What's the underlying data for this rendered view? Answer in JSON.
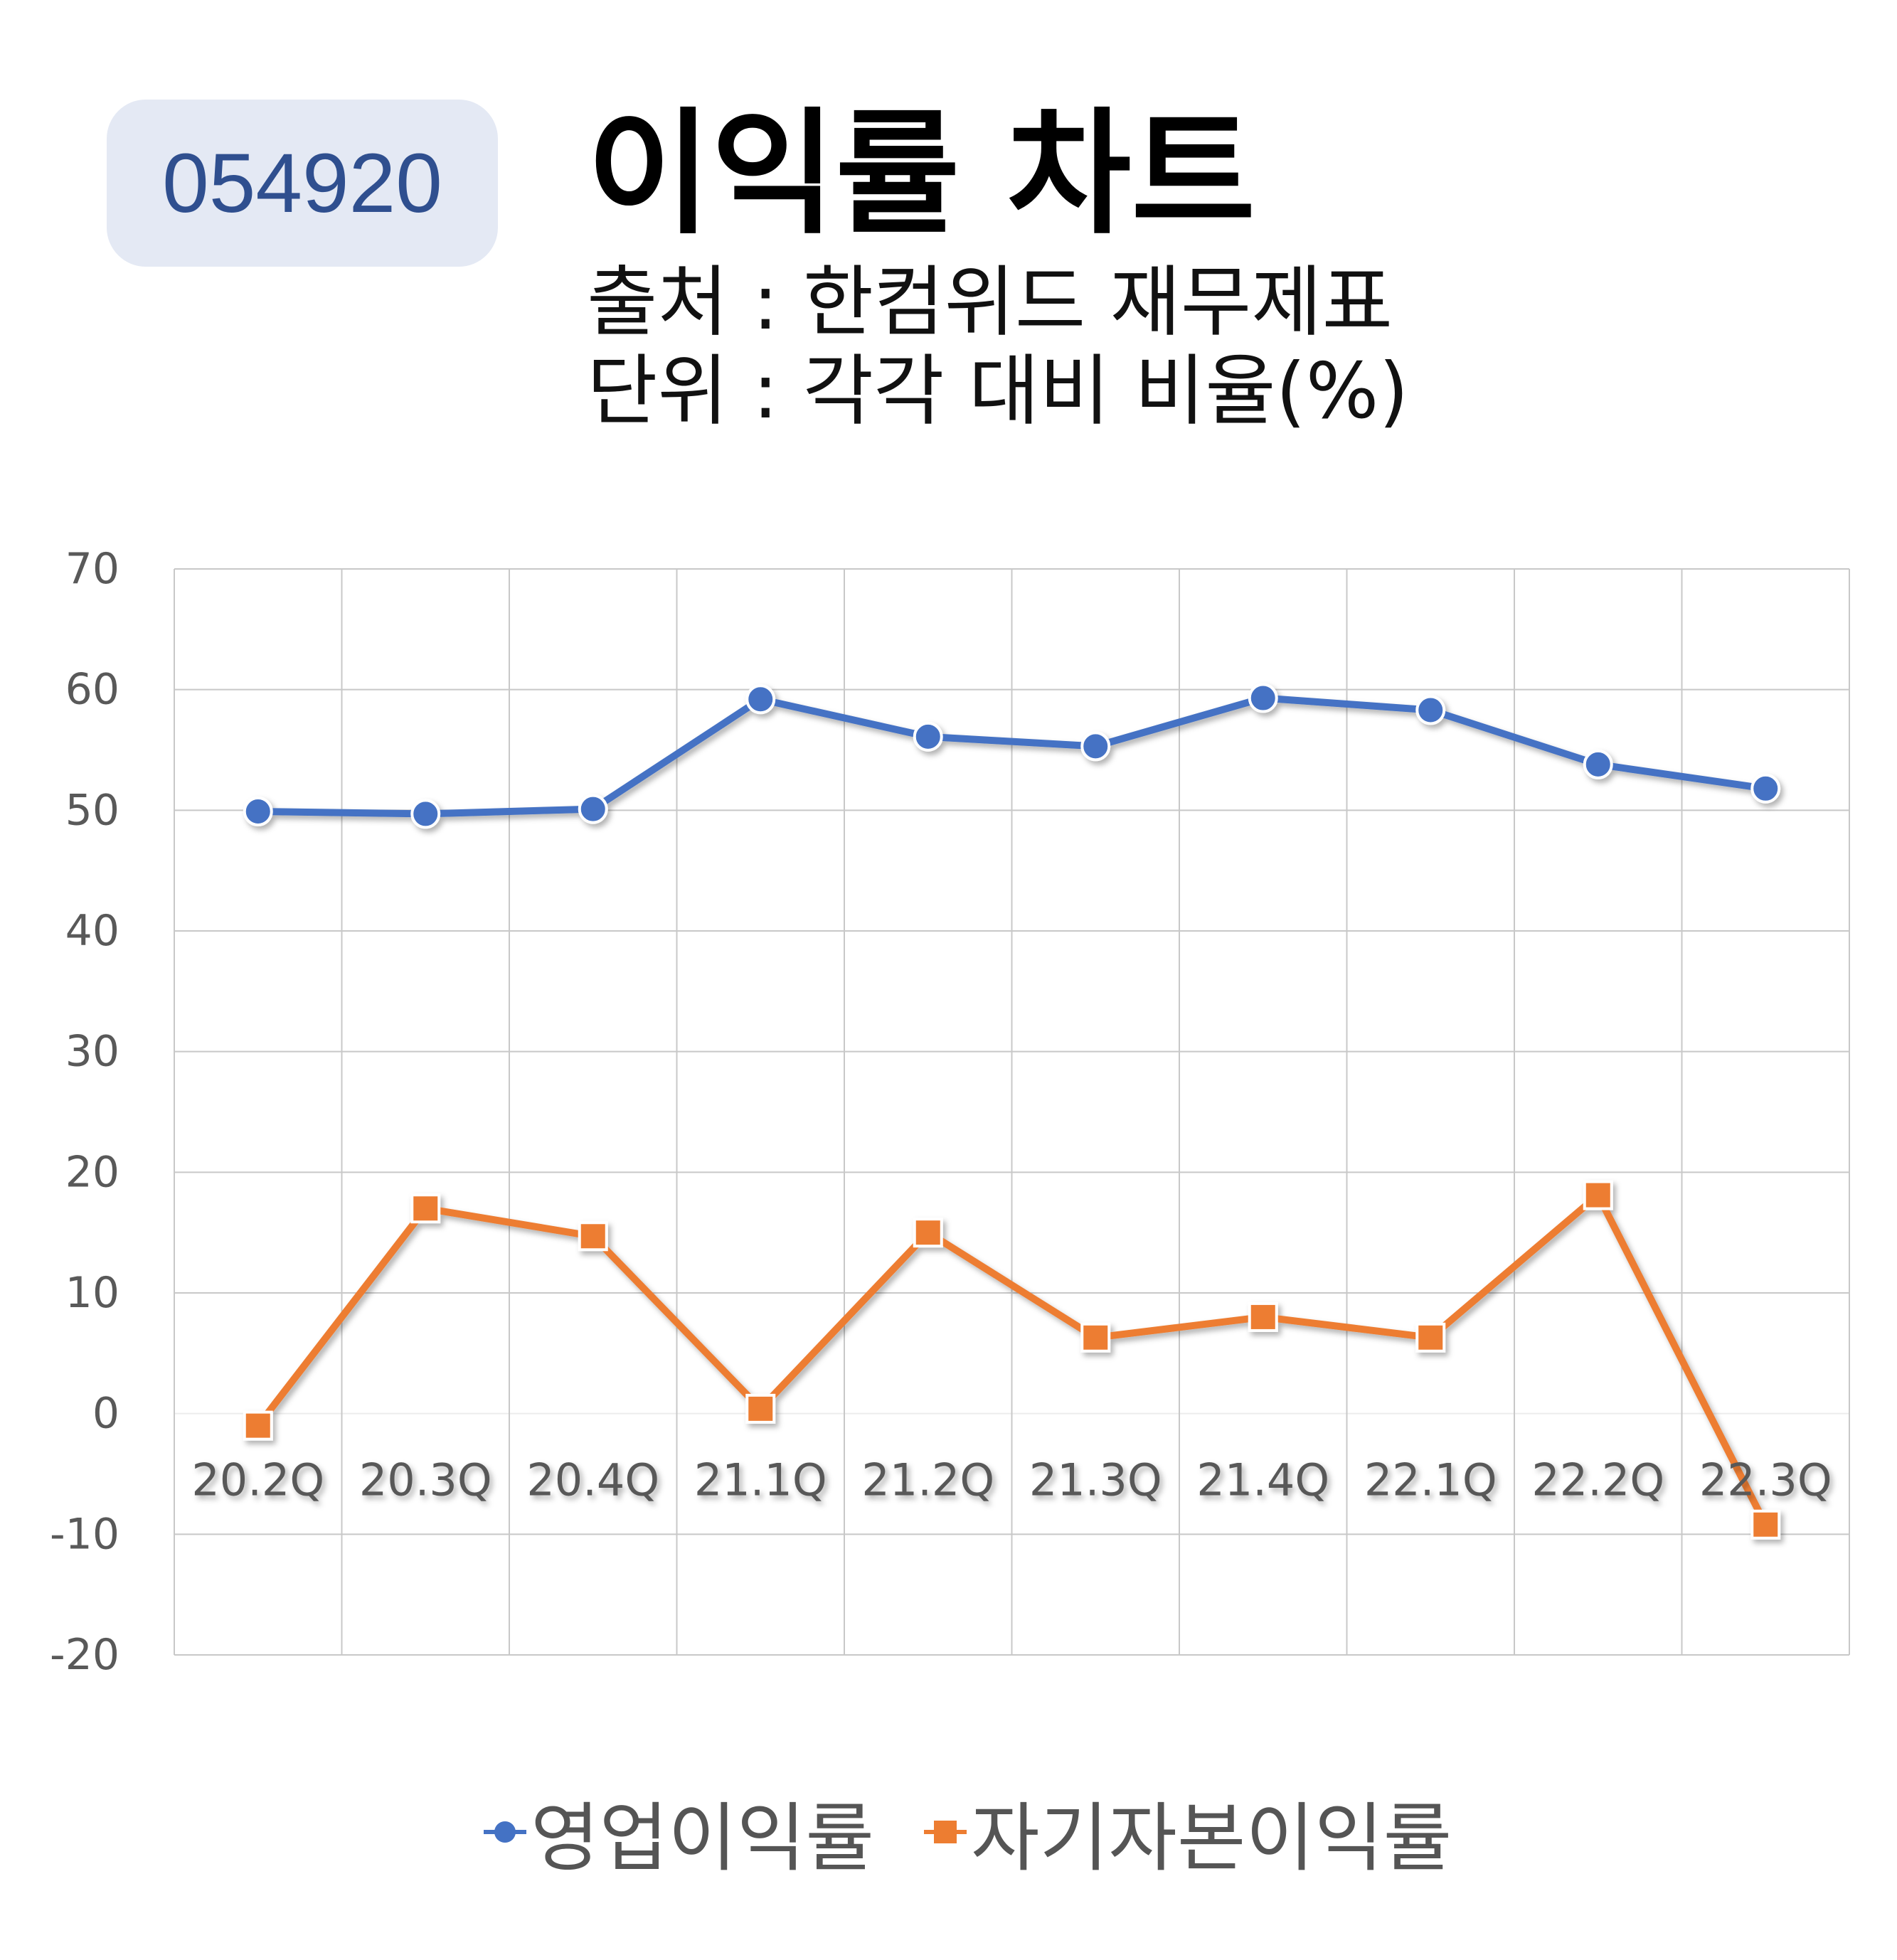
{
  "badge": {
    "code": "054920"
  },
  "header": {
    "title": "이익률 차트",
    "source": "출처 : 한컴위드 재무제표",
    "unit": "단위 : 각각 대비 비율(%)"
  },
  "colors": {
    "series1": "#4472c4",
    "series2": "#ed7d31",
    "grid": "#c8c8c8",
    "tick": "#595959"
  },
  "chart_data": {
    "type": "line",
    "title": "이익률 차트",
    "categories": [
      "20.2Q",
      "20.3Q",
      "20.4Q",
      "21.1Q",
      "21.2Q",
      "21.3Q",
      "21.4Q",
      "22.1Q",
      "22.2Q",
      "22.3Q"
    ],
    "yticks": [
      "70",
      "60",
      "50",
      "40",
      "30",
      "20",
      "10",
      "0",
      "-10",
      "-20"
    ],
    "ylim": [
      -20,
      70
    ],
    "grid": true,
    "legend_position": "bottom",
    "series": [
      {
        "name": "영업이익률",
        "marker": "circle",
        "values": [
          49.9,
          49.7,
          50.1,
          59.2,
          56.1,
          55.3,
          59.3,
          58.3,
          53.8,
          51.8
        ]
      },
      {
        "name": "자기자본이익률",
        "marker": "square",
        "values": [
          -1.0,
          17.0,
          14.7,
          0.4,
          15.0,
          6.3,
          8.0,
          6.3,
          18.1,
          -9.2
        ]
      }
    ]
  }
}
